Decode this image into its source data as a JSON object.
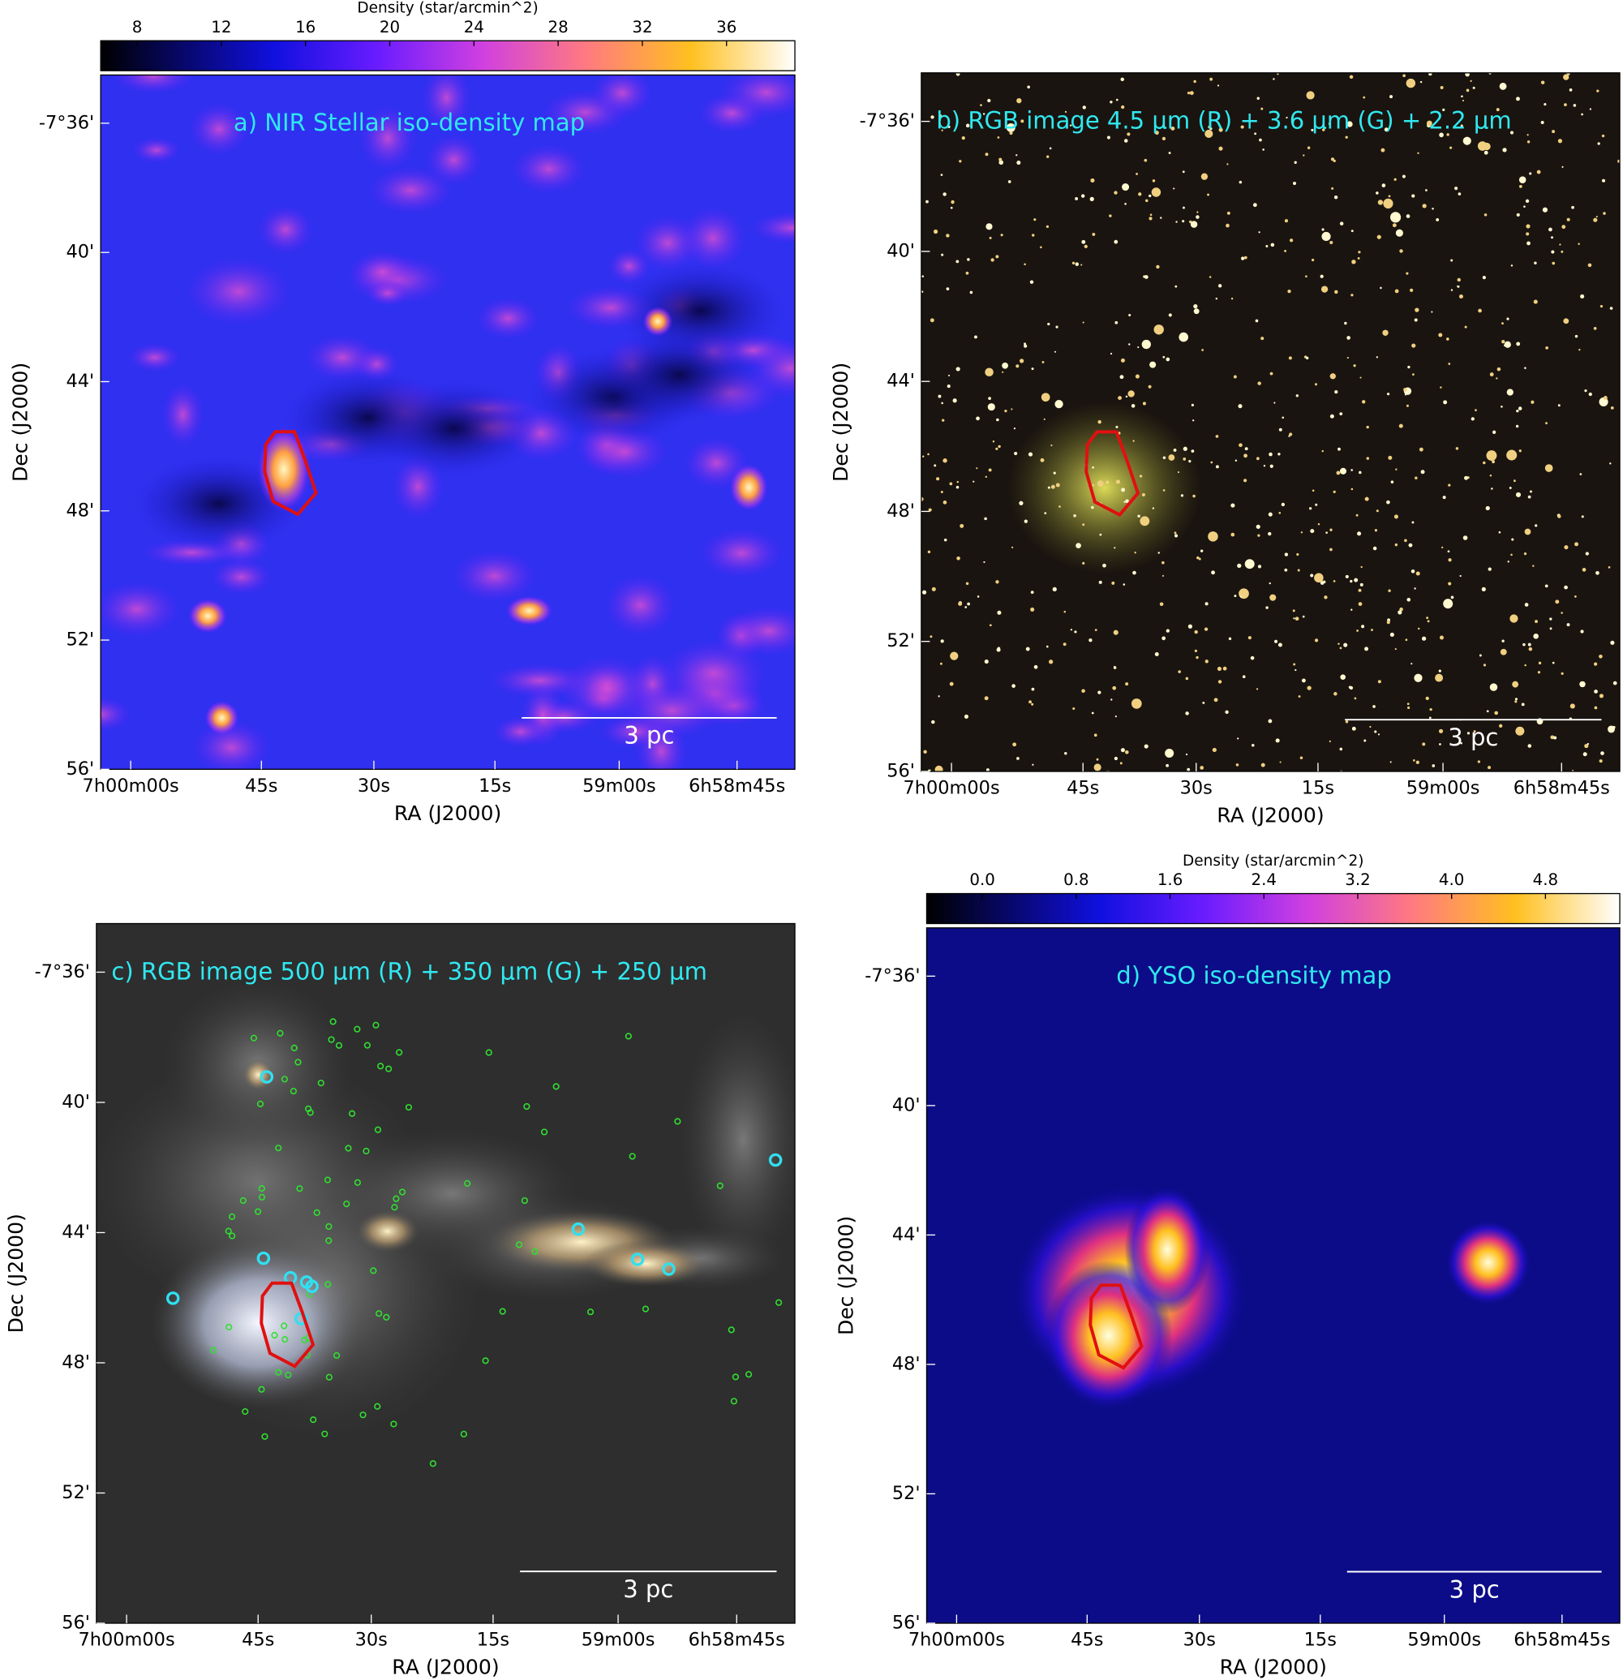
{
  "panels": [
    {
      "title": "a) NIR Stellar iso-density map",
      "x_label": "RA (J2000)",
      "y_label": "Dec (J2000)",
      "x_ticks": [
        "7h00m00s",
        "45s",
        "30s",
        "15s",
        "59m00s",
        "6h58m45s"
      ],
      "y_ticks": [
        "-7°36'",
        "40'",
        "44'",
        "48'",
        "52'",
        "56'"
      ],
      "scale_bar": "3 pc",
      "colorbar": {
        "label": "Density (star/arcmin^2)",
        "ticks": [
          "8",
          "12",
          "16",
          "20",
          "24",
          "28",
          "32",
          "36"
        ]
      }
    },
    {
      "title": "b)   RGB image 4.5 μm  (R) + 3.6 μm   (G) + 2.2 μm",
      "x_label": "RA (J2000)",
      "y_label": "Dec (J2000)",
      "x_ticks": [
        "7h00m00s",
        "45s",
        "30s",
        "15s",
        "59m00s",
        "6h58m45s"
      ],
      "y_ticks": [
        "-7°36'",
        "40'",
        "44'",
        "48'",
        "52'",
        "56'"
      ],
      "scale_bar": "3 pc"
    },
    {
      "title": "c)   RGB image 500 μm  (R) + 350 μm   (G) + 250 μm",
      "x_label": "RA (J2000)",
      "y_label": "Dec (J2000)",
      "x_ticks": [
        "7h00m00s",
        "45s",
        "30s",
        "15s",
        "59m00s",
        "6h58m45s"
      ],
      "y_ticks": [
        "-7°36'",
        "40'",
        "44'",
        "48'",
        "52'",
        "56'"
      ],
      "scale_bar": "3 pc"
    },
    {
      "title": "d) YSO iso-density map",
      "x_label": "RA (J2000)",
      "y_label": "Dec (J2000)",
      "x_ticks": [
        "7h00m00s",
        "45s",
        "30s",
        "15s",
        "59m00s",
        "6h58m45s"
      ],
      "y_ticks": [
        "-7°36'",
        "40'",
        "44'",
        "48'",
        "52'",
        "56'"
      ],
      "scale_bar": "3 pc",
      "colorbar": {
        "label": "Density (star/arcmin^2)",
        "ticks": [
          "0.0",
          "0.8",
          "1.6",
          "2.4",
          "3.2",
          "4.0",
          "4.8"
        ]
      }
    }
  ]
}
